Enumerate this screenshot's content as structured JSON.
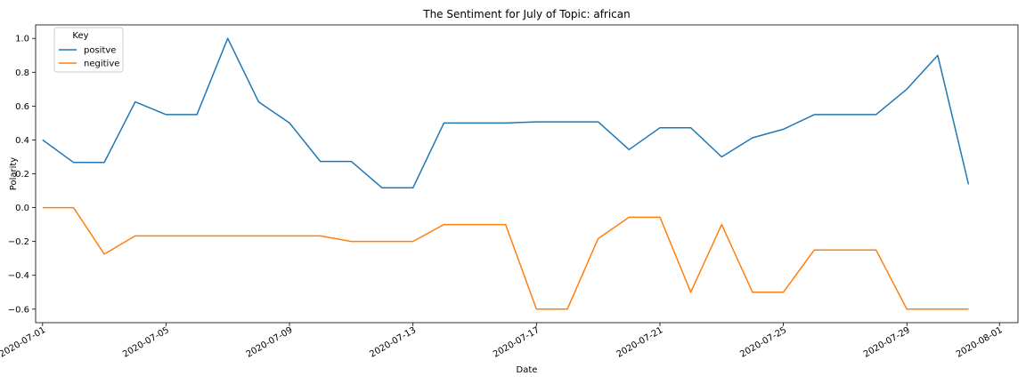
{
  "chart_data": {
    "type": "line",
    "title": "The Sentiment for July of Topic: african",
    "xlabel": "Date",
    "ylabel": "Polarity",
    "legend_title": "Key",
    "legend_position": "top-left",
    "grid": false,
    "xlim": [
      "2020-07-01",
      "2020-08-01"
    ],
    "ylim": [
      -0.68,
      1.08
    ],
    "yticks": [
      -0.6,
      -0.4,
      -0.2,
      0.0,
      0.2,
      0.4,
      0.6,
      0.8,
      1.0
    ],
    "ytick_labels": [
      "−0.6",
      "−0.4",
      "−0.2",
      "0.0",
      "0.2",
      "0.4",
      "0.6",
      "0.8",
      "1.0"
    ],
    "xticks": [
      "2020-07-01",
      "2020-07-05",
      "2020-07-09",
      "2020-07-13",
      "2020-07-17",
      "2020-07-21",
      "2020-07-25",
      "2020-07-29",
      "2020-08-01"
    ],
    "x": [
      "2020-07-01",
      "2020-07-02",
      "2020-07-03",
      "2020-07-04",
      "2020-07-05",
      "2020-07-06",
      "2020-07-07",
      "2020-07-08",
      "2020-07-09",
      "2020-07-10",
      "2020-07-11",
      "2020-07-12",
      "2020-07-13",
      "2020-07-14",
      "2020-07-15",
      "2020-07-16",
      "2020-07-17",
      "2020-07-18",
      "2020-07-19",
      "2020-07-20",
      "2020-07-21",
      "2020-07-22",
      "2020-07-23",
      "2020-07-24",
      "2020-07-25",
      "2020-07-26",
      "2020-07-27",
      "2020-07-28",
      "2020-07-29",
      "2020-07-30",
      "2020-07-31"
    ],
    "series": [
      {
        "name": "positve",
        "color": "#1f77b4",
        "values": [
          0.4,
          0.267,
          0.267,
          0.625,
          0.55,
          0.55,
          1.0,
          0.625,
          0.5,
          0.273,
          0.273,
          0.117,
          0.117,
          0.5,
          0.5,
          0.5,
          0.507,
          0.507,
          0.507,
          0.343,
          0.472,
          0.472,
          0.3,
          0.413,
          0.463,
          0.55,
          0.55,
          0.55,
          0.7,
          0.9,
          0.137
        ]
      },
      {
        "name": "negitive",
        "color": "#ff7f0e",
        "values": [
          0.0,
          0.0,
          -0.275,
          -0.167,
          -0.167,
          -0.167,
          -0.167,
          -0.167,
          -0.167,
          -0.167,
          -0.2,
          -0.2,
          -0.2,
          -0.1,
          -0.1,
          -0.1,
          -0.6,
          -0.6,
          -0.183,
          -0.057,
          -0.057,
          -0.5,
          -0.1,
          -0.5,
          -0.5,
          -0.25,
          -0.25,
          -0.25,
          -0.6,
          -0.6,
          -0.6
        ]
      }
    ]
  }
}
